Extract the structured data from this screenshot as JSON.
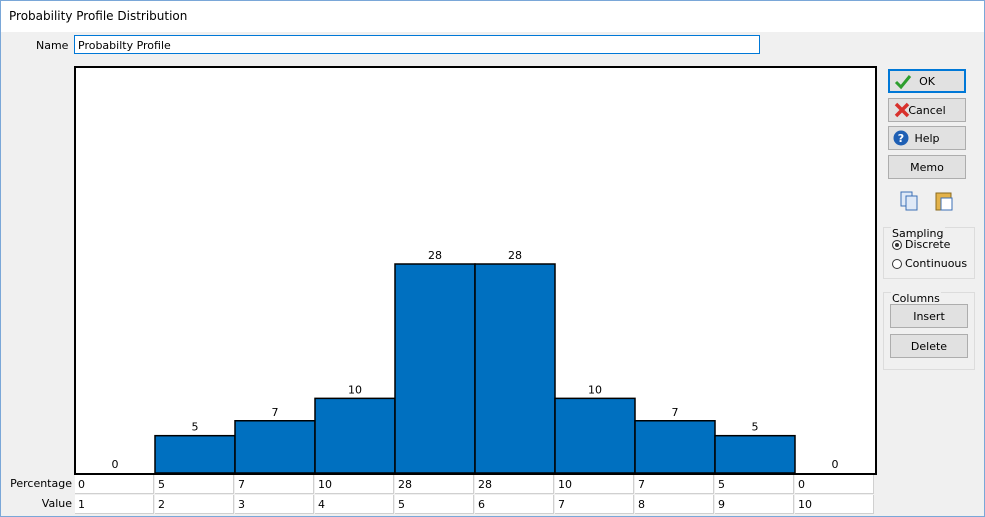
{
  "window": {
    "title": "Probability Profile Distribution"
  },
  "form": {
    "name_label": "Name",
    "name_value": "Probabilty Profile"
  },
  "chart_data": {
    "type": "bar",
    "categories": [
      1,
      2,
      3,
      4,
      5,
      6,
      7,
      8,
      9,
      10
    ],
    "values": [
      0,
      5,
      7,
      10,
      28,
      28,
      10,
      7,
      5,
      0
    ],
    "color": "#0070c0"
  },
  "table": {
    "row_labels": [
      "Percentage",
      "Value"
    ]
  },
  "buttons": {
    "ok": "OK",
    "cancel": "Cancel",
    "help": "Help",
    "memo": "Memo"
  },
  "sampling": {
    "title": "Sampling",
    "options": [
      "Discrete",
      "Continuous"
    ],
    "selected": 0
  },
  "columns": {
    "title": "Columns",
    "buttons": [
      "Insert",
      "Delete"
    ]
  }
}
